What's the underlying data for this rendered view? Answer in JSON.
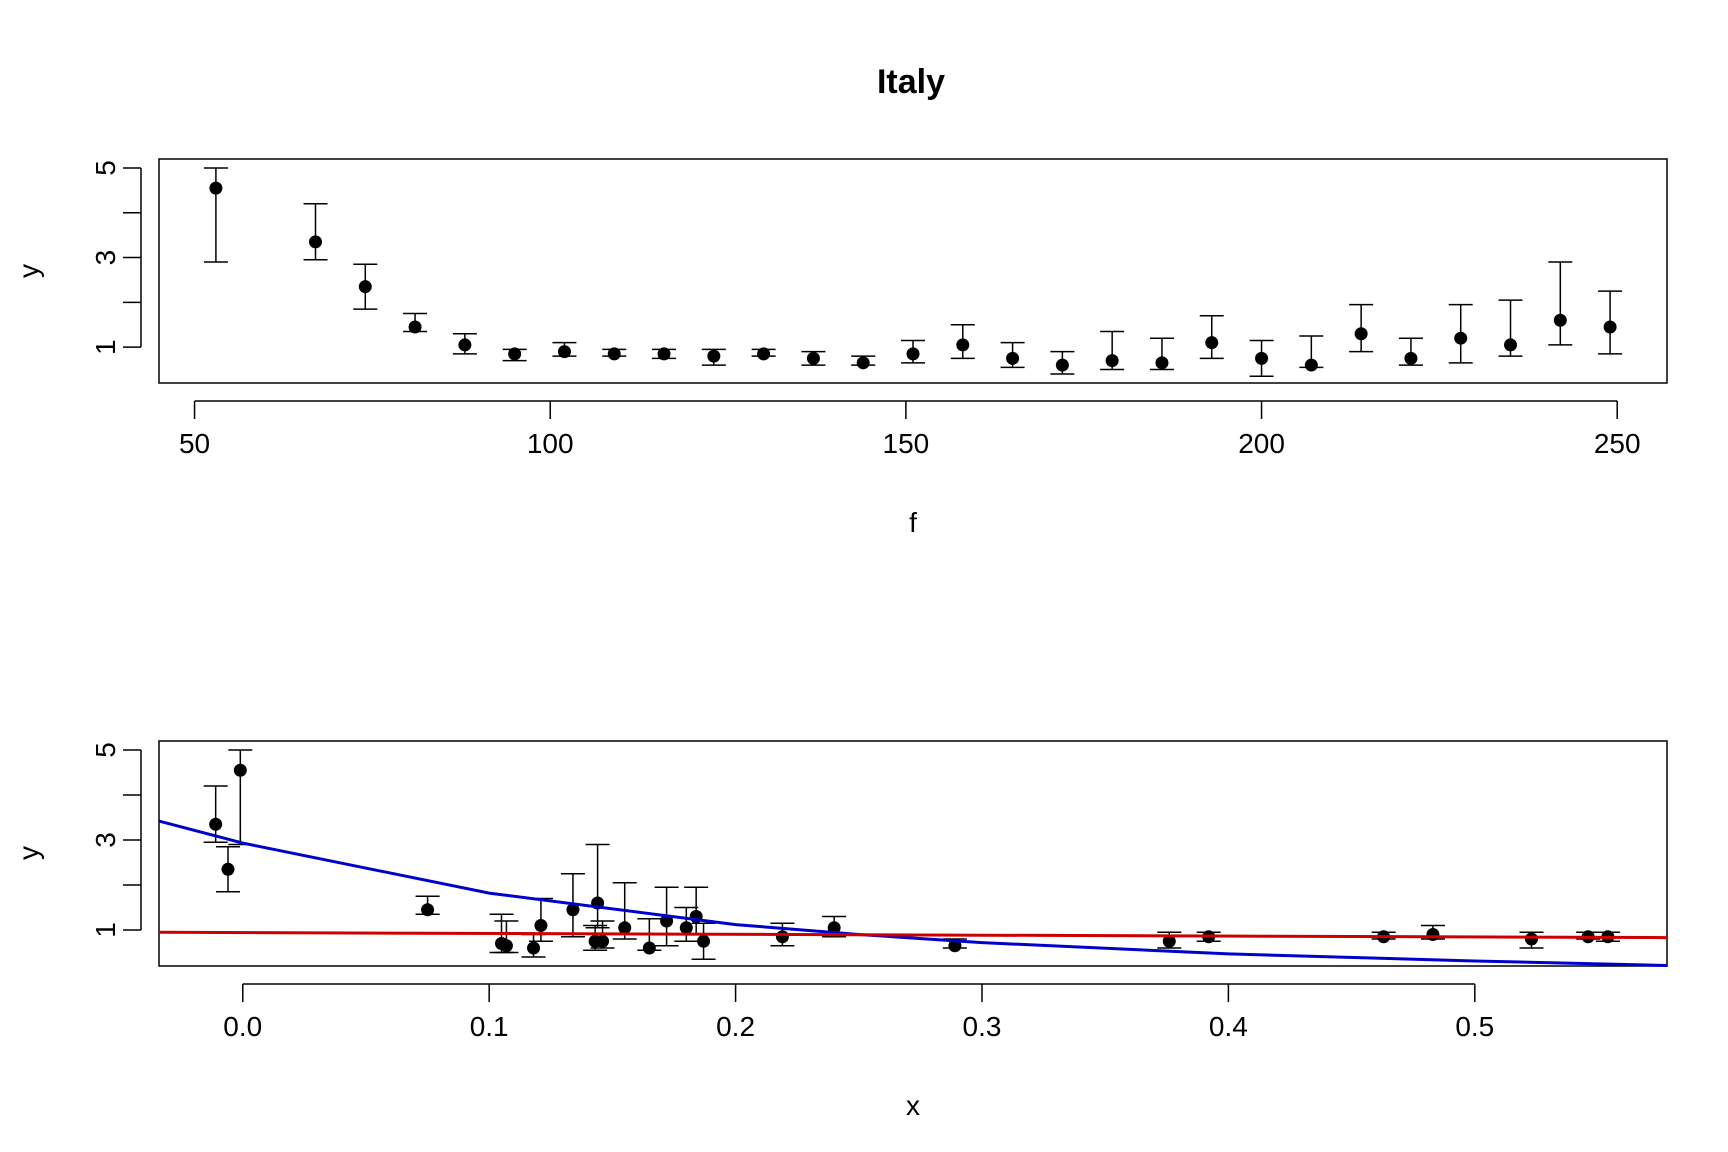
{
  "title": "Italy",
  "chart_data": [
    {
      "type": "scatter",
      "xlabel": "f",
      "ylabel": "y",
      "xlim": [
        45,
        257
      ],
      "ylim": [
        0.2,
        5.2
      ],
      "xticks": [
        50,
        100,
        150,
        200,
        250
      ],
      "xtick_labels": [
        "50",
        "100",
        "150",
        "200",
        "250"
      ],
      "yticks": [
        1,
        3,
        5
      ],
      "ytick_labels": [
        "1",
        "3",
        "5"
      ],
      "grid": false,
      "points": [
        {
          "x": 53,
          "y": 4.55,
          "lo": 2.9,
          "hi": 5.0
        },
        {
          "x": 67,
          "y": 3.35,
          "lo": 2.95,
          "hi": 4.2
        },
        {
          "x": 74,
          "y": 2.35,
          "lo": 1.85,
          "hi": 2.85
        },
        {
          "x": 81,
          "y": 1.45,
          "lo": 1.35,
          "hi": 1.75
        },
        {
          "x": 88,
          "y": 1.05,
          "lo": 0.85,
          "hi": 1.3
        },
        {
          "x": 95,
          "y": 0.85,
          "lo": 0.7,
          "hi": 0.95
        },
        {
          "x": 102,
          "y": 0.9,
          "lo": 0.8,
          "hi": 1.1
        },
        {
          "x": 109,
          "y": 0.85,
          "lo": 0.8,
          "hi": 0.95
        },
        {
          "x": 116,
          "y": 0.85,
          "lo": 0.75,
          "hi": 0.95
        },
        {
          "x": 123,
          "y": 0.8,
          "lo": 0.6,
          "hi": 0.95
        },
        {
          "x": 130,
          "y": 0.85,
          "lo": 0.8,
          "hi": 0.95
        },
        {
          "x": 137,
          "y": 0.75,
          "lo": 0.6,
          "hi": 0.9
        },
        {
          "x": 144,
          "y": 0.65,
          "lo": 0.6,
          "hi": 0.8
        },
        {
          "x": 151,
          "y": 0.85,
          "lo": 0.65,
          "hi": 1.15
        },
        {
          "x": 158,
          "y": 1.05,
          "lo": 0.75,
          "hi": 1.5
        },
        {
          "x": 165,
          "y": 0.75,
          "lo": 0.55,
          "hi": 1.1
        },
        {
          "x": 172,
          "y": 0.6,
          "lo": 0.4,
          "hi": 0.9
        },
        {
          "x": 179,
          "y": 0.7,
          "lo": 0.5,
          "hi": 1.35
        },
        {
          "x": 186,
          "y": 0.65,
          "lo": 0.5,
          "hi": 1.2
        },
        {
          "x": 193,
          "y": 1.1,
          "lo": 0.75,
          "hi": 1.7
        },
        {
          "x": 200,
          "y": 0.75,
          "lo": 0.35,
          "hi": 1.15
        },
        {
          "x": 207,
          "y": 0.6,
          "lo": 0.55,
          "hi": 1.25
        },
        {
          "x": 214,
          "y": 1.3,
          "lo": 0.9,
          "hi": 1.95
        },
        {
          "x": 221,
          "y": 0.75,
          "lo": 0.6,
          "hi": 1.2
        },
        {
          "x": 228,
          "y": 1.2,
          "lo": 0.65,
          "hi": 1.95
        },
        {
          "x": 235,
          "y": 1.05,
          "lo": 0.8,
          "hi": 2.05
        },
        {
          "x": 242,
          "y": 1.6,
          "lo": 1.05,
          "hi": 2.9
        },
        {
          "x": 249,
          "y": 1.45,
          "lo": 0.85,
          "hi": 2.25
        }
      ]
    },
    {
      "type": "scatter",
      "xlabel": "x",
      "ylabel": "y",
      "xlim": [
        -0.034,
        0.578
      ],
      "ylim": [
        0.2,
        5.2
      ],
      "xticks": [
        0.0,
        0.1,
        0.2,
        0.3,
        0.4,
        0.5
      ],
      "xtick_labels": [
        "0.0",
        "0.1",
        "0.2",
        "0.3",
        "0.4",
        "0.5"
      ],
      "yticks": [
        1,
        3,
        5
      ],
      "ytick_labels": [
        "1",
        "3",
        "5"
      ],
      "grid": false,
      "points": [
        {
          "x": -0.011,
          "y": 3.35,
          "lo": 2.95,
          "hi": 4.2
        },
        {
          "x": -0.006,
          "y": 2.35,
          "lo": 1.85,
          "hi": 2.85
        },
        {
          "x": -0.001,
          "y": 4.55,
          "lo": 2.9,
          "hi": 5.0
        },
        {
          "x": 0.075,
          "y": 1.45,
          "lo": 1.35,
          "hi": 1.75
        },
        {
          "x": 0.105,
          "y": 0.7,
          "lo": 0.5,
          "hi": 1.35
        },
        {
          "x": 0.107,
          "y": 0.65,
          "lo": 0.5,
          "hi": 1.2
        },
        {
          "x": 0.118,
          "y": 0.6,
          "lo": 0.4,
          "hi": 0.9
        },
        {
          "x": 0.121,
          "y": 1.1,
          "lo": 0.75,
          "hi": 1.7
        },
        {
          "x": 0.134,
          "y": 1.45,
          "lo": 0.85,
          "hi": 2.25
        },
        {
          "x": 0.143,
          "y": 0.75,
          "lo": 0.55,
          "hi": 1.1
        },
        {
          "x": 0.144,
          "y": 1.6,
          "lo": 1.05,
          "hi": 2.9
        },
        {
          "x": 0.146,
          "y": 0.75,
          "lo": 0.6,
          "hi": 1.2
        },
        {
          "x": 0.155,
          "y": 1.05,
          "lo": 0.8,
          "hi": 2.05
        },
        {
          "x": 0.165,
          "y": 0.6,
          "lo": 0.55,
          "hi": 1.25
        },
        {
          "x": 0.172,
          "y": 1.2,
          "lo": 0.65,
          "hi": 1.95
        },
        {
          "x": 0.18,
          "y": 1.05,
          "lo": 0.75,
          "hi": 1.5
        },
        {
          "x": 0.184,
          "y": 1.3,
          "lo": 0.9,
          "hi": 1.95
        },
        {
          "x": 0.187,
          "y": 0.75,
          "lo": 0.35,
          "hi": 1.15
        },
        {
          "x": 0.219,
          "y": 0.85,
          "lo": 0.65,
          "hi": 1.15
        },
        {
          "x": 0.24,
          "y": 1.05,
          "lo": 0.85,
          "hi": 1.3
        },
        {
          "x": 0.289,
          "y": 0.65,
          "lo": 0.6,
          "hi": 0.8
        },
        {
          "x": 0.376,
          "y": 0.75,
          "lo": 0.6,
          "hi": 0.95
        },
        {
          "x": 0.392,
          "y": 0.85,
          "lo": 0.75,
          "hi": 0.95
        },
        {
          "x": 0.463,
          "y": 0.85,
          "lo": 0.8,
          "hi": 0.95
        },
        {
          "x": 0.483,
          "y": 0.9,
          "lo": 0.8,
          "hi": 1.1
        },
        {
          "x": 0.523,
          "y": 0.8,
          "lo": 0.6,
          "hi": 0.95
        },
        {
          "x": 0.546,
          "y": 0.85,
          "lo": 0.8,
          "hi": 0.95
        },
        {
          "x": 0.554,
          "y": 0.85,
          "lo": 0.75,
          "hi": 0.95
        }
      ],
      "fits": [
        {
          "color": "#0000cc",
          "x": [
            -0.034,
            0.0,
            0.1,
            0.2,
            0.25,
            0.3,
            0.4,
            0.5,
            0.578
          ],
          "y": [
            3.42,
            2.93,
            1.82,
            1.12,
            0.9,
            0.72,
            0.47,
            0.31,
            0.21
          ]
        },
        {
          "color": "#cc0000",
          "x": [
            -0.034,
            0.578
          ],
          "y": [
            0.95,
            0.83
          ]
        }
      ]
    }
  ]
}
